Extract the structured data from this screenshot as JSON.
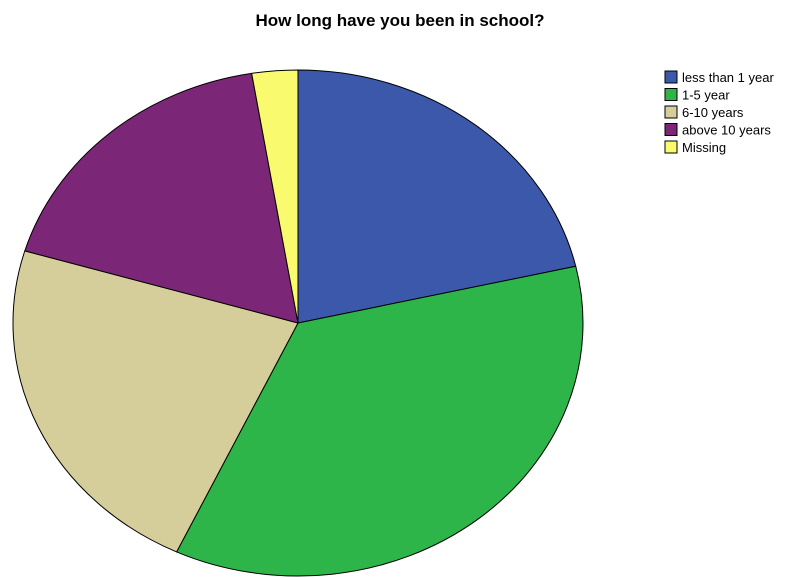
{
  "chart_data": {
    "type": "pie",
    "title": "How long have you been in school?",
    "categories": [
      "less than 1 year",
      "1-5 year",
      "6-10 years",
      "above 10 years",
      "Missing"
    ],
    "values": [
      21.4,
      35.6,
      22.6,
      17.8,
      2.6
    ],
    "unit": "percent (estimated)",
    "colors": [
      "#3c58ab",
      "#2eb54a",
      "#d5ce9a",
      "#7b2677",
      "#fafa6e"
    ],
    "legend_position": "top-right",
    "start_angle_deg": 0,
    "direction": "clockwise"
  }
}
